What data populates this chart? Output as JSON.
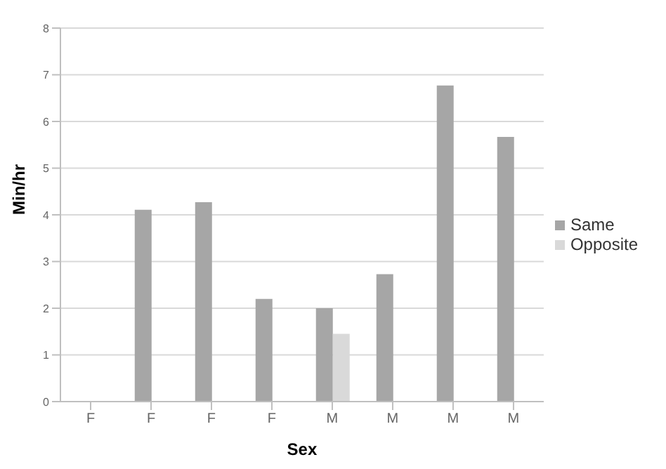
{
  "chart_data": {
    "type": "bar",
    "xlabel": "Sex",
    "ylabel": "Min/hr",
    "categories": [
      "F",
      "F",
      "F",
      "F",
      "M",
      "M",
      "M",
      "M"
    ],
    "series": [
      {
        "name": "Same",
        "color": "#a6a6a6",
        "values": [
          null,
          4.11,
          4.27,
          2.2,
          2.0,
          2.73,
          6.77,
          5.67
        ]
      },
      {
        "name": "Opposite",
        "color": "#d9d9d9",
        "values": [
          null,
          null,
          null,
          null,
          1.45,
          null,
          null,
          null
        ]
      }
    ],
    "ylim": [
      0,
      8
    ],
    "yticks": [
      0,
      1,
      2,
      3,
      4,
      5,
      6,
      7,
      8
    ],
    "grid": "y",
    "legend": "right"
  }
}
